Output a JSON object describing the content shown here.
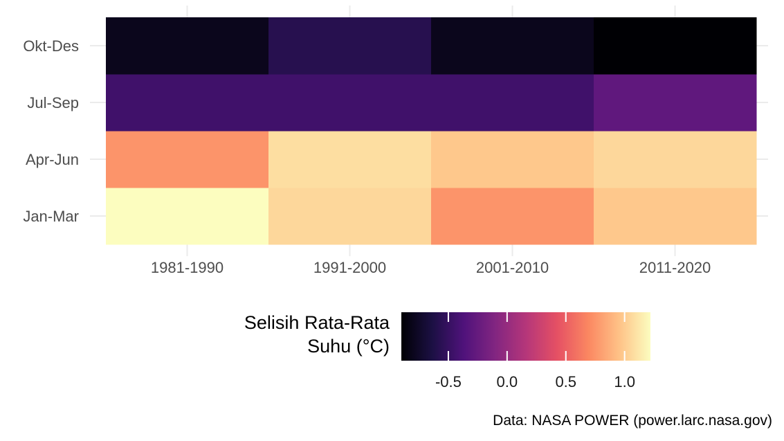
{
  "chart_data": {
    "type": "heatmap",
    "x_categories": [
      "1981-1990",
      "1991-2000",
      "2001-2010",
      "2011-2020"
    ],
    "y_categories": [
      "Jan-Mar",
      "Apr-Jun",
      "Jul-Sep",
      "Okt-Des"
    ],
    "values": [
      [
        1.22,
        1.05,
        0.75,
        0.98
      ],
      [
        0.75,
        1.08,
        0.98,
        1.05
      ],
      [
        -0.45,
        -0.45,
        -0.45,
        -0.28
      ],
      [
        -0.8,
        -0.58,
        -0.8,
        -0.9
      ]
    ],
    "color_scale": {
      "name": "magma",
      "domain": [
        -0.9,
        1.22
      ],
      "stops": [
        "#000004",
        "#1c1044",
        "#4f127b",
        "#812581",
        "#b5367a",
        "#e55064",
        "#fb8761",
        "#fec287",
        "#fcfdbf"
      ]
    },
    "legend": {
      "title_lines": [
        "Selisih Rata-Rata",
        "Suhu (°C)"
      ],
      "ticks": [
        -0.5,
        0.0,
        0.5,
        1.0
      ],
      "tick_labels": [
        "-0.5",
        "0.0",
        "0.5",
        "1.0"
      ],
      "position": "bottom"
    },
    "grid": true,
    "xlabel": "",
    "ylabel": "",
    "caption": "Data: NASA POWER (power.larc.nasa.gov)"
  }
}
